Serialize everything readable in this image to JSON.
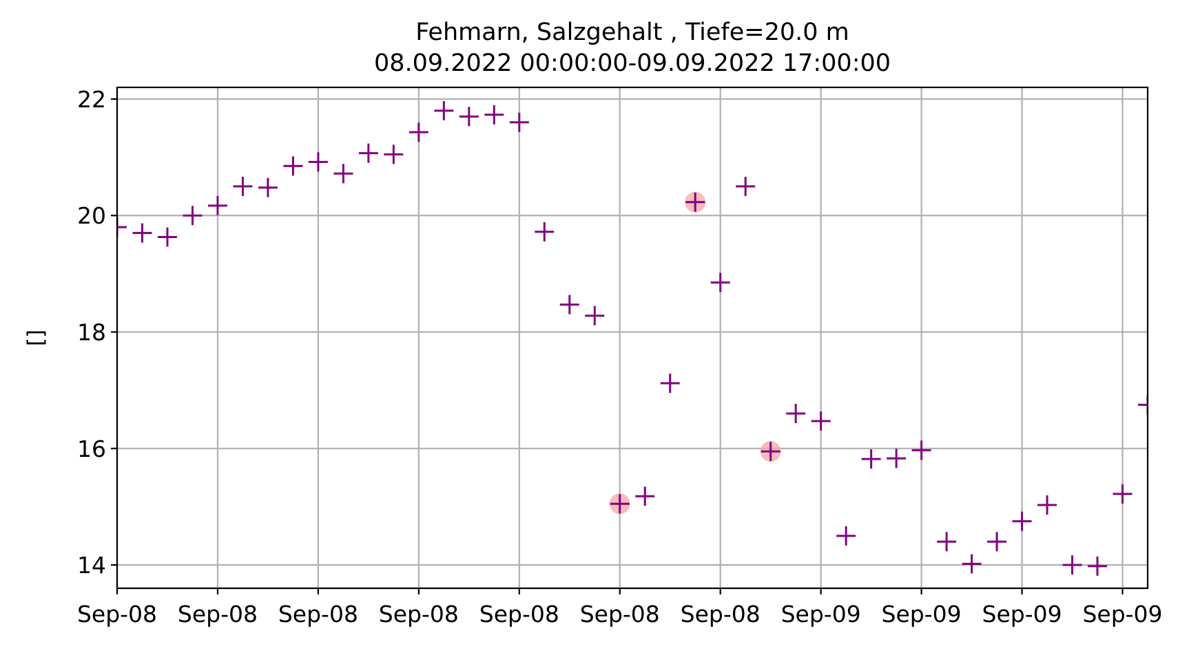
{
  "chart_data": {
    "type": "scatter",
    "title": "Fehmarn, Salzgehalt , Tiefe=20.0 m",
    "subtitle": "08.09.2022 00:00:00-09.09.2022 17:00:00",
    "xlabel": "",
    "ylabel": "[]",
    "ylim": [
      13.6,
      22.2
    ],
    "yticks": [
      14,
      16,
      18,
      20,
      22
    ],
    "xlim": [
      0,
      41
    ],
    "xtick_labels": [
      "Sep-08",
      "Sep-08",
      "Sep-08",
      "Sep-08",
      "Sep-08",
      "Sep-08",
      "Sep-08",
      "Sep-09",
      "Sep-09",
      "Sep-09",
      "Sep-09",
      "Sep-09"
    ],
    "grid": true,
    "marker": "+",
    "colors": {
      "series": "#800080",
      "highlight": "#f4a6a6",
      "grid": "#b0b0b0"
    },
    "series": [
      {
        "x": [
          0,
          1,
          2,
          3,
          4,
          5,
          6,
          7,
          8,
          9,
          10,
          11,
          12,
          13,
          14,
          15,
          16,
          17,
          18,
          19,
          20,
          21,
          22,
          23,
          24,
          25,
          26,
          27,
          28,
          29,
          30,
          31,
          32,
          33,
          34,
          35,
          36,
          37,
          38,
          39,
          40,
          41
        ],
        "values": [
          19.8,
          19.7,
          19.63,
          20.0,
          20.17,
          20.5,
          20.48,
          20.85,
          20.92,
          20.72,
          21.07,
          21.05,
          21.43,
          21.8,
          21.7,
          21.73,
          21.6,
          19.72,
          18.47,
          18.28,
          15.05,
          15.18,
          17.12,
          20.23,
          18.85,
          20.5,
          15.95,
          16.6,
          16.47,
          14.5,
          15.82,
          15.83,
          15.97,
          14.4,
          14.02,
          14.4,
          14.75,
          15.03,
          14.0,
          13.98,
          15.22,
          16.75
        ]
      }
    ],
    "highlighted_points": [
      {
        "x": 20,
        "y": 15.05
      },
      {
        "x": 23,
        "y": 20.23
      },
      {
        "x": 26,
        "y": 15.95
      }
    ]
  }
}
